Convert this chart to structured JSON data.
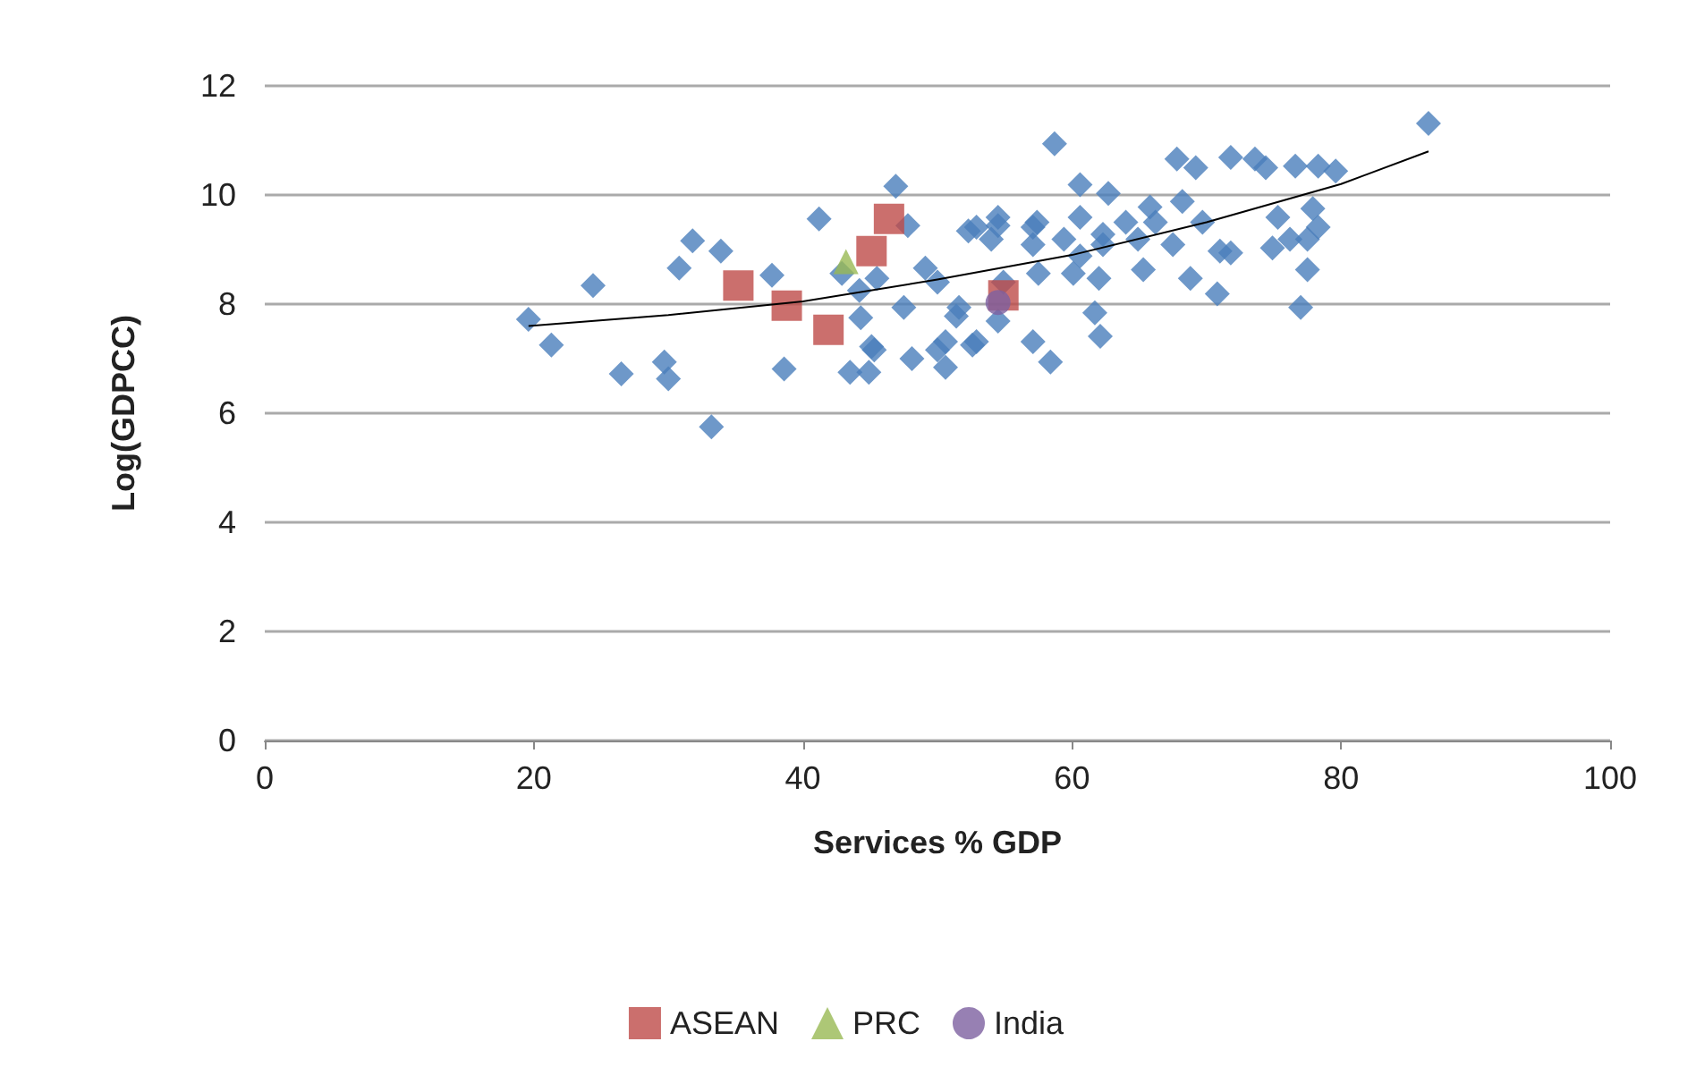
{
  "chart_data": {
    "type": "scatter",
    "xlabel": "Services % GDP",
    "ylabel": "Log(GDPCC)",
    "xlim": [
      0,
      100
    ],
    "xticks": [
      0,
      20,
      40,
      60,
      80,
      100
    ],
    "ylim": [
      0,
      12
    ],
    "yticks": [
      0,
      2,
      4,
      6,
      8,
      10,
      12
    ],
    "grid": "y",
    "legend": "bottom",
    "series": [
      {
        "color": "#4a7ebb",
        "marker": "diamond",
        "x": [
          19.6,
          21.3,
          24.4,
          26.5,
          29.7,
          30,
          30.8,
          31.8,
          33.2,
          33.9,
          37.7,
          38.6,
          41.2,
          43.5,
          44.3,
          44.9,
          45.3,
          46.9,
          47.8,
          47.5,
          48.1,
          49.1,
          50,
          50,
          50.6,
          51.4,
          52.3,
          52.9,
          54,
          54.5,
          54.9,
          54.5,
          86.5,
          58.7,
          67.8,
          69.2,
          71.8,
          73.6,
          74.4,
          76.6,
          78.3,
          79.6,
          60.6,
          62.7,
          54.5,
          52.9,
          57.4,
          65.8,
          68.2,
          60.6,
          64,
          69.7,
          75.3,
          77.9,
          78.3,
          57.1,
          59.4,
          62.3,
          64.9,
          67.5,
          71.8,
          74.9,
          77.5,
          57.5,
          60.1,
          62,
          65.3,
          68.8,
          70.8,
          77,
          77.5,
          61.7,
          62.1,
          57.1,
          58.4,
          52.6,
          62.3,
          66.2,
          71,
          76.2,
          60.6,
          50.6,
          51.6,
          57.1,
          45.1,
          42.9,
          44.2,
          45.5
        ],
        "values": [
          7.72,
          7.25,
          8.34,
          6.72,
          6.94,
          6.63,
          8.66,
          9.16,
          5.75,
          8.97,
          8.53,
          6.81,
          9.56,
          6.75,
          7.75,
          6.75,
          7.16,
          10.16,
          9.44,
          7.94,
          7.0,
          8.66,
          8.4,
          7.16,
          6.84,
          7.78,
          9.34,
          7.31,
          9.19,
          9.44,
          8.4,
          7.69,
          11.31,
          10.94,
          10.66,
          10.5,
          10.69,
          10.66,
          10.5,
          10.53,
          10.53,
          10.44,
          10.19,
          10.03,
          9.59,
          9.41,
          9.5,
          9.78,
          9.88,
          9.59,
          9.5,
          9.5,
          9.59,
          9.75,
          9.41,
          9.09,
          9.19,
          9.09,
          9.19,
          9.09,
          8.94,
          9.03,
          9.19,
          8.56,
          8.56,
          8.47,
          8.63,
          8.47,
          8.19,
          7.94,
          8.63,
          7.84,
          7.41,
          7.31,
          6.94,
          7.25,
          9.28,
          9.5,
          8.97,
          9.19,
          8.88,
          7.31,
          7.94,
          9.41,
          7.22,
          8.56,
          8.25,
          8.47
        ]
      },
      {
        "name": "ASEAN",
        "color": "#be4b48",
        "marker": "square",
        "x": [
          35.2,
          38.8,
          41.9,
          45.1,
          46.4,
          54.9
        ],
        "values": [
          8.34,
          7.97,
          7.53,
          8.97,
          9.56,
          8.16
        ]
      },
      {
        "name": "PRC",
        "color": "#98b954",
        "marker": "triangle",
        "x": [
          43.2
        ],
        "values": [
          8.78
        ]
      },
      {
        "name": "India",
        "color": "#7d60a0",
        "marker": "circle",
        "x": [
          54.5
        ],
        "values": [
          8.03
        ]
      },
      {
        "type": "line",
        "color": "#000000",
        "marker": "none",
        "x": [
          19.6,
          30,
          40,
          50,
          60,
          70,
          80,
          86.5
        ],
        "values": [
          7.6,
          7.8,
          8.05,
          8.45,
          8.9,
          9.5,
          10.2,
          10.8
        ]
      }
    ]
  }
}
